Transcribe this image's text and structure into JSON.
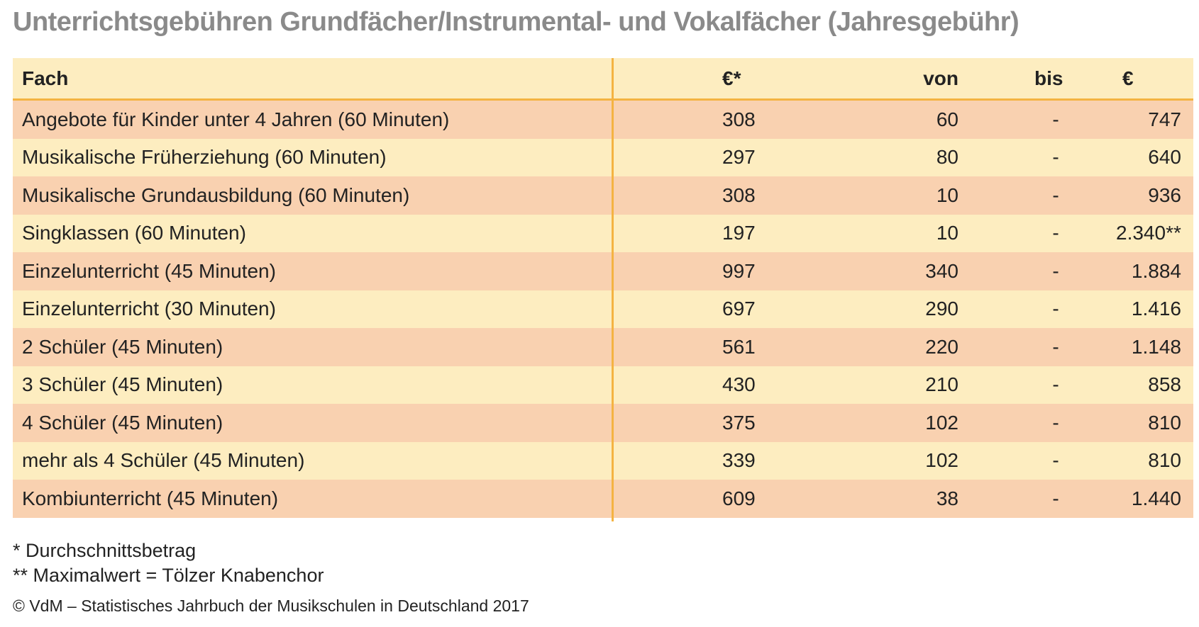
{
  "title": "Unterrichtsgebühren Grundfächer/Instrumental- und Vokalfächer (Jahresgebühr)",
  "table": {
    "headers": {
      "fach": "Fach",
      "avg": "€*",
      "von": "von",
      "bis": "bis",
      "max": "€"
    },
    "rows": [
      {
        "fach": "Angebote für Kinder unter 4 Jahren (60 Minuten)",
        "avg": "308",
        "von": "60",
        "bis": "-",
        "max": "747"
      },
      {
        "fach": "Musikalische Früherziehung (60 Minuten)",
        "avg": "297",
        "von": "80",
        "bis": "-",
        "max": "640"
      },
      {
        "fach": "Musikalische Grundausbildung (60 Minuten)",
        "avg": "308",
        "von": "10",
        "bis": "-",
        "max": "936"
      },
      {
        "fach": "Singklassen (60 Minuten)",
        "avg": "197",
        "von": "10",
        "bis": "-",
        "max": "2.340**"
      },
      {
        "fach": "Einzelunterricht (45 Minuten)",
        "avg": "997",
        "von": "340",
        "bis": "-",
        "max": "1.884"
      },
      {
        "fach": "Einzelunterricht (30 Minuten)",
        "avg": "697",
        "von": "290",
        "bis": "-",
        "max": "1.416"
      },
      {
        "fach": "2 Schüler (45 Minuten)",
        "avg": "561",
        "von": "220",
        "bis": "-",
        "max": "1.148"
      },
      {
        "fach": "3 Schüler (45 Minuten)",
        "avg": "430",
        "von": "210",
        "bis": "-",
        "max": "858"
      },
      {
        "fach": "4 Schüler (45 Minuten)",
        "avg": "375",
        "von": "102",
        "bis": "-",
        "max": "810"
      },
      {
        "fach": "mehr als 4 Schüler (45 Minuten)",
        "avg": "339",
        "von": "102",
        "bis": "-",
        "max": "810"
      },
      {
        "fach": "Kombiunterricht (45 Minuten)",
        "avg": "609",
        "von": "38",
        "bis": "-",
        "max": "1.440"
      }
    ]
  },
  "footnotes": {
    "fn1": "* Durchschnittsbetrag",
    "fn2": "** Maximalwert = Tölzer Knabenchor"
  },
  "source": "© VdM – Statistisches Jahrbuch der Musikschulen in Deutschland 2017",
  "colors": {
    "header_bg": "#fdedc0",
    "row_odd": "#f9d1b0",
    "row_even": "#fdedc0",
    "divider": "#f4b342",
    "title": "#8a8a8a"
  }
}
